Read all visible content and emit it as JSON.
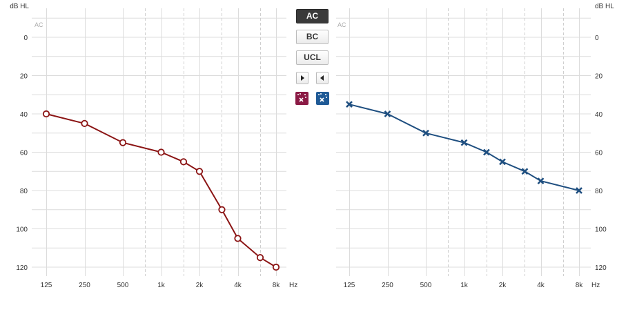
{
  "controls": {
    "ac_label": "AC",
    "bc_label": "BC",
    "ucl_label": "UCL",
    "active_mode": "AC",
    "nav_icons": [
      "play-right-icon",
      "play-left-icon"
    ],
    "symbol_icons": [
      "right-ear-symbol-icon",
      "left-ear-symbol-icon"
    ]
  },
  "colors": {
    "right": "#8b1414",
    "left": "#1f4f80",
    "grid": "#dcdcdc",
    "grid_dashed": "#cfcfcf"
  },
  "chart_data": [
    {
      "type": "line",
      "panel": "left",
      "ylabel": "dB HL",
      "corner_label": "AC",
      "xunit": "Hz",
      "x_tick_labels": [
        "125",
        "250",
        "500",
        "1k",
        "2k",
        "4k",
        "8k"
      ],
      "y_tick_labels": [
        "0",
        "20",
        "40",
        "60",
        "80",
        "100",
        "120"
      ],
      "x_scale": "log2",
      "xlim": [
        125,
        8000
      ],
      "ylim": [
        -10,
        125
      ],
      "y_inverted": true,
      "grid": true,
      "marker": "circle",
      "color": "#8b1414",
      "x": [
        125,
        250,
        500,
        1000,
        1500,
        2000,
        3000,
        4000,
        6000,
        8000
      ],
      "y": [
        40,
        45,
        55,
        60,
        65,
        70,
        90,
        105,
        115,
        120
      ]
    },
    {
      "type": "line",
      "panel": "right",
      "ylabel": "dB HL",
      "corner_label": "AC",
      "xunit": "Hz",
      "x_tick_labels": [
        "125",
        "250",
        "500",
        "1k",
        "2k",
        "4k",
        "8k"
      ],
      "y_tick_labels": [
        "0",
        "20",
        "40",
        "60",
        "80",
        "100",
        "120"
      ],
      "x_scale": "log2",
      "xlim": [
        125,
        8000
      ],
      "ylim": [
        -10,
        125
      ],
      "y_inverted": true,
      "grid": true,
      "marker": "cross",
      "color": "#1f4f80",
      "x": [
        125,
        250,
        500,
        1000,
        1500,
        2000,
        3000,
        4000,
        8000
      ],
      "y": [
        35,
        40,
        50,
        55,
        60,
        65,
        70,
        75,
        80
      ]
    }
  ]
}
